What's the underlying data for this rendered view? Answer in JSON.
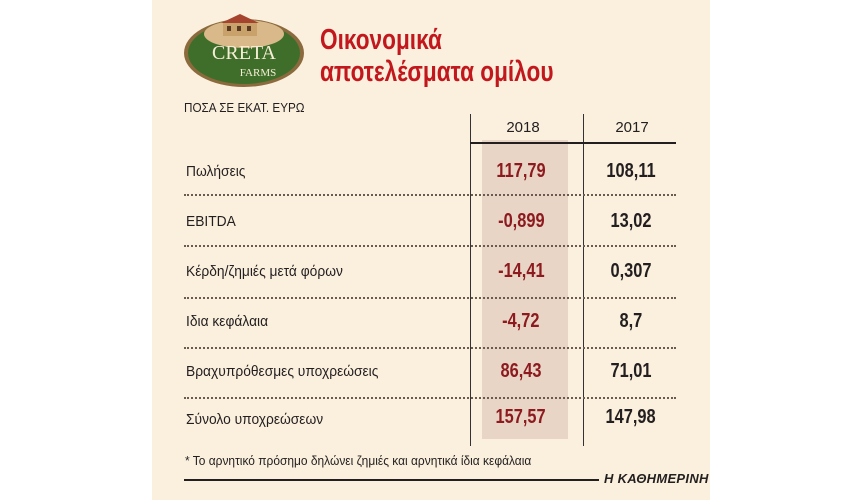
{
  "header": {
    "logo_text_top": "CRETA",
    "logo_text_bottom": "FARMS",
    "title_line1": "Οικονομικά",
    "title_line2": "αποτελέσματα ομίλου",
    "subtitle": "ΠΟΣΑ ΣΕ ΕΚΑΤ. ΕΥΡΩ"
  },
  "colors": {
    "title": "#c2171d",
    "value_2018": "#8c1a1f",
    "highlight": "#e8d5c5",
    "panel": "#fbf0dd"
  },
  "chart_data": {
    "type": "table",
    "columns": [
      "2018",
      "2017"
    ],
    "rows": [
      {
        "label": "Πωλήσεις",
        "v2018": "117,79",
        "v2017": "108,11"
      },
      {
        "label": "EBITDA",
        "v2018": "-0,899",
        "v2017": "13,02"
      },
      {
        "label": "Κέρδη/ζημιές μετά φόρων",
        "v2018": "-14,41",
        "v2017": "0,307"
      },
      {
        "label": "Ιδια κεφάλαια",
        "v2018": "-4,72",
        "v2017": "8,7"
      },
      {
        "label": "Βραχυπρόθεσμες υποχρεώσεις",
        "v2018": "86,43",
        "v2017": "71,01"
      },
      {
        "label": "Σύνολο υποχρεώσεων",
        "v2018": "157,57",
        "v2017": "147,98"
      }
    ]
  },
  "footnote": "* Το αρνητικό πρόσημο δηλώνει ζημιές και αρνητικά ίδια κεφάλαια",
  "source": "Η ΚΑΘΗΜΕΡΙΝΗ"
}
